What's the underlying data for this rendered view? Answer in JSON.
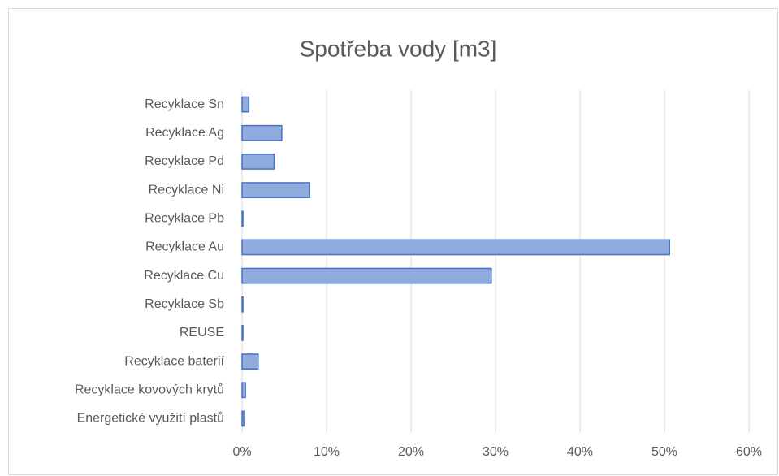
{
  "chart_data": {
    "type": "bar",
    "orientation": "horizontal",
    "title": "Spotřeba vody [m3]",
    "categories": [
      "Recyklace Sn",
      "Recyklace Ag",
      "Recyklace Pd",
      "Recyklace Ni",
      "Recyklace Pb",
      "Recyklace Au",
      "Recyklace Cu",
      "Recyklace Sb",
      "REUSE",
      "Recyklace baterií",
      "Recyklace kovových krytů",
      "Energetické využití plastů"
    ],
    "values": [
      0.8,
      4.7,
      3.8,
      8.0,
      0.1,
      50.6,
      29.5,
      0.1,
      0.1,
      1.9,
      0.4,
      0.2
    ],
    "color": "#8faadc",
    "edge_color": "#4472c4",
    "xlim": [
      0,
      60
    ],
    "xticks": [
      {
        "value": 0,
        "label": "0%"
      },
      {
        "value": 10,
        "label": "10%"
      },
      {
        "value": 20,
        "label": "20%"
      },
      {
        "value": 30,
        "label": "30%"
      },
      {
        "value": 40,
        "label": "40%"
      },
      {
        "value": 50,
        "label": "50%"
      },
      {
        "value": 60,
        "label": "60%"
      }
    ],
    "grid": true
  }
}
